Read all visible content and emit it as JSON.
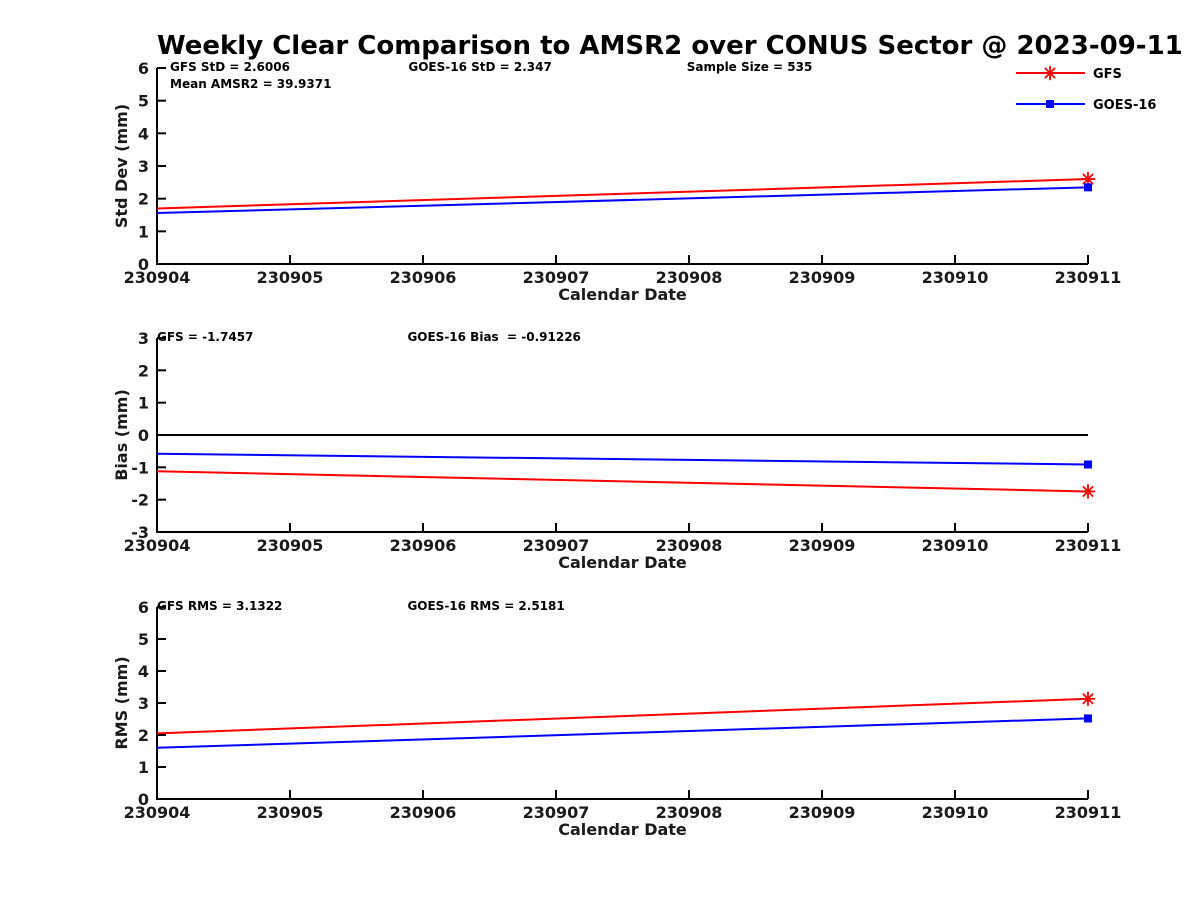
{
  "title": "Weekly Clear Comparison to AMSR2 over CONUS Sector @ 2023-09-11",
  "legend": {
    "position": "top-right",
    "entries": [
      {
        "label": "GFS",
        "color": "#ff0000",
        "marker": "asterisk"
      },
      {
        "label": "GOES-16",
        "color": "#0000ff",
        "marker": "square"
      }
    ]
  },
  "chart_data": [
    {
      "type": "line",
      "title": "",
      "xlabel": "Calendar Date",
      "ylabel": "Std Dev (mm)",
      "x": [
        230904,
        230911
      ],
      "xticks": [
        "230904",
        "230905",
        "230906",
        "230907",
        "230908",
        "230909",
        "230910",
        "230911"
      ],
      "ylim": [
        0,
        6
      ],
      "yticks": [
        0,
        1,
        2,
        3,
        4,
        5,
        6
      ],
      "grid": false,
      "zero_line": false,
      "series": [
        {
          "name": "GFS",
          "color": "#ff0000",
          "marker": "asterisk",
          "marker_on": "last",
          "values": [
            1.7,
            2.6006
          ]
        },
        {
          "name": "GOES-16",
          "color": "#0000ff",
          "marker": "square",
          "marker_on": "last",
          "values": [
            1.56,
            2.347
          ]
        }
      ],
      "annotations": [
        {
          "text": "GFS StD = 2.6006",
          "xfrac": 0.014,
          "row": 0
        },
        {
          "text": "GOES-16 StD = 2.347",
          "xfrac": 0.27,
          "row": 0
        },
        {
          "text": "Sample Size = 535",
          "xfrac": 0.569,
          "row": 0
        },
        {
          "text": "Mean AMSR2 = 39.9371",
          "xfrac": 0.014,
          "row": 1
        }
      ]
    },
    {
      "type": "line",
      "title": "",
      "xlabel": "Calendar Date",
      "ylabel": "Bias (mm)",
      "x": [
        230904,
        230911
      ],
      "xticks": [
        "230904",
        "230905",
        "230906",
        "230907",
        "230908",
        "230909",
        "230910",
        "230911"
      ],
      "ylim": [
        -3,
        3
      ],
      "yticks": [
        -3,
        -2,
        -1,
        0,
        1,
        2,
        3
      ],
      "grid": false,
      "zero_line": true,
      "series": [
        {
          "name": "GFS",
          "color": "#ff0000",
          "marker": "asterisk",
          "marker_on": "last",
          "values": [
            -1.12,
            -1.7457
          ]
        },
        {
          "name": "GOES-16",
          "color": "#0000ff",
          "marker": "square",
          "marker_on": "last",
          "values": [
            -0.58,
            -0.91226
          ]
        }
      ],
      "annotations": [
        {
          "text": "GFS = -1.7457",
          "xfrac": 0.0,
          "row": 0
        },
        {
          "text": "GOES-16 Bias  = -0.91226",
          "xfrac": 0.269,
          "row": 0
        }
      ]
    },
    {
      "type": "line",
      "title": "",
      "xlabel": "Calendar Date",
      "ylabel": "RMS (mm)",
      "x": [
        230904,
        230911
      ],
      "xticks": [
        "230904",
        "230905",
        "230906",
        "230907",
        "230908",
        "230909",
        "230910",
        "230911"
      ],
      "ylim": [
        0,
        6
      ],
      "yticks": [
        0,
        1,
        2,
        3,
        4,
        5,
        6
      ],
      "grid": false,
      "zero_line": false,
      "series": [
        {
          "name": "GFS",
          "color": "#ff0000",
          "marker": "asterisk",
          "marker_on": "last",
          "values": [
            2.05,
            3.1322
          ]
        },
        {
          "name": "GOES-16",
          "color": "#0000ff",
          "marker": "square",
          "marker_on": "last",
          "values": [
            1.6,
            2.5181
          ]
        }
      ],
      "annotations": [
        {
          "text": "GFS RMS = 3.1322",
          "xfrac": 0.0,
          "row": 0
        },
        {
          "text": "GOES-16 RMS = 2.5181",
          "xfrac": 0.269,
          "row": 0
        }
      ]
    }
  ],
  "colors": {
    "gfs": "#ff0000",
    "goes16": "#0000ff",
    "axis": "#000000",
    "text": "#1a1a1a",
    "background": "#ffffff"
  }
}
